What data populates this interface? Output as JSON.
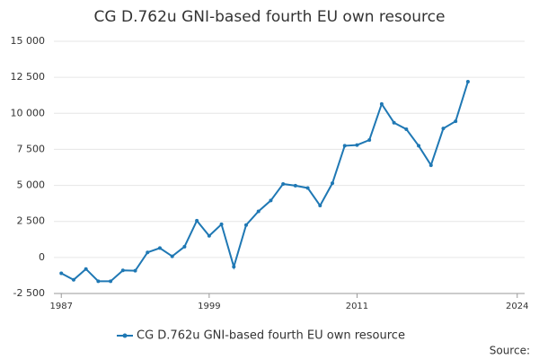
{
  "chart_data": {
    "type": "line",
    "title": "CG D.762u GNI-based fourth EU own resource",
    "source": "Source:",
    "x": [
      1987,
      1988,
      1989,
      1990,
      1991,
      1992,
      1993,
      1994,
      1995,
      1996,
      1997,
      1998,
      1999,
      2000,
      2001,
      2002,
      2003,
      2004,
      2005,
      2006,
      2007,
      2008,
      2009,
      2010,
      2011,
      2012,
      2013,
      2014,
      2015,
      2016,
      2017,
      2018,
      2019,
      2020
    ],
    "series": [
      {
        "name": "CG D.762u GNI-based fourth EU own resource",
        "color": "#1f78b4",
        "values": [
          -1100,
          -1550,
          -800,
          -1650,
          -1650,
          -900,
          -920,
          350,
          650,
          80,
          750,
          2550,
          1500,
          2300,
          -650,
          2250,
          3200,
          3950,
          5100,
          4980,
          4820,
          3600,
          5150,
          7750,
          7800,
          8150,
          10650,
          9350,
          8900,
          7750,
          6400,
          8950,
          9450,
          12200
        ]
      }
    ],
    "xlim": [
      1986.4,
      2024.6
    ],
    "xticks": [
      1987,
      1999,
      2011,
      2024
    ],
    "ylim": [
      -2500,
      15000
    ],
    "yticks": [
      {
        "value": -2500,
        "label": "-2 500"
      },
      0,
      {
        "value": 2500,
        "label": "2 500"
      },
      {
        "value": 5000,
        "label": "5 000"
      },
      {
        "value": 7500,
        "label": "7 500"
      },
      {
        "value": 10000,
        "label": "10 000"
      },
      {
        "value": 12500,
        "label": "12 500"
      },
      {
        "value": 15000,
        "label": "15 000"
      }
    ],
    "grid": true
  }
}
